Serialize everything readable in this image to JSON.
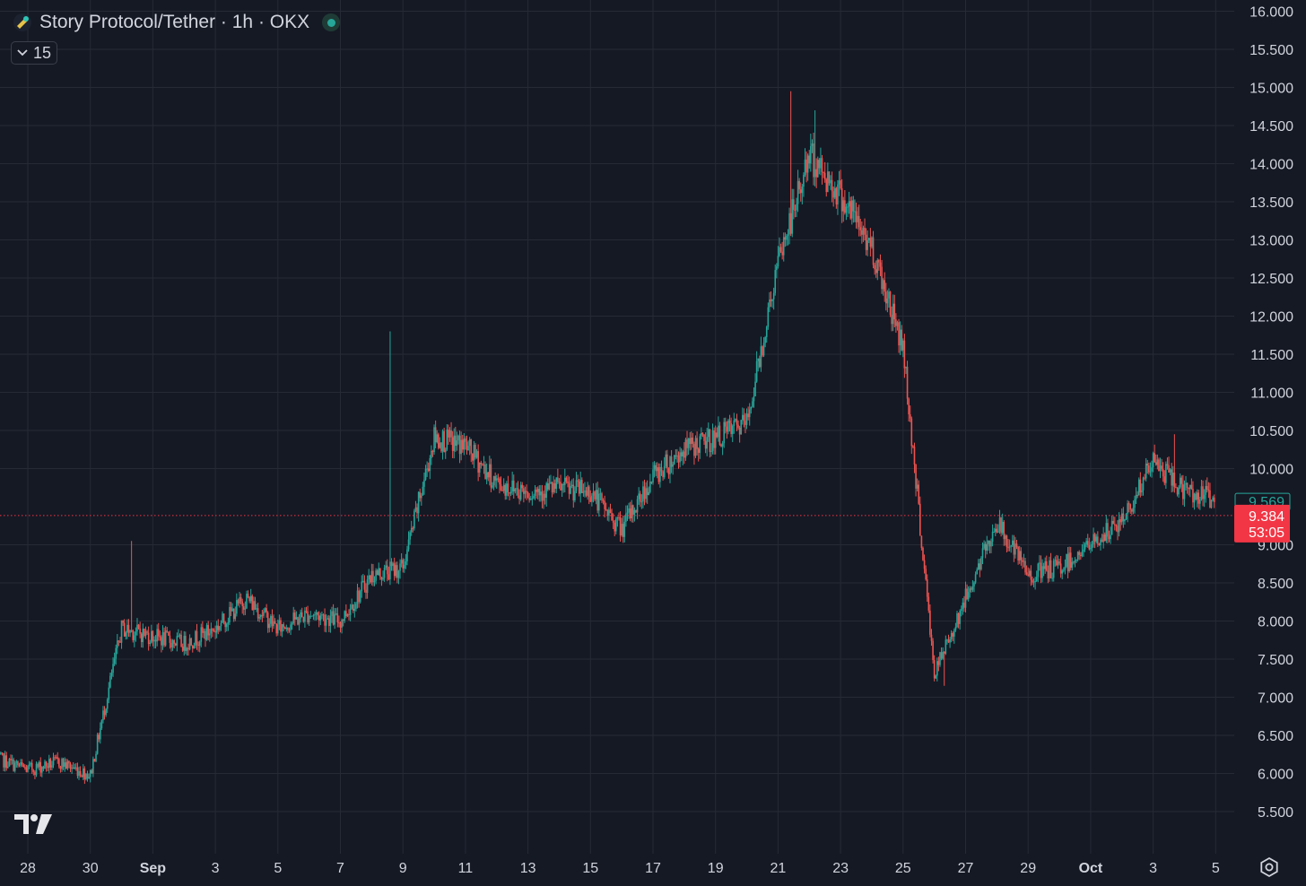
{
  "header": {
    "symbol": "Story Protocol/Tether · 1h · OKX",
    "indicator_count": "15",
    "logo_icon": "story-protocol-icon",
    "live_icon": "market-open-dot"
  },
  "colors": {
    "background": "#151924",
    "grid": "#262a35",
    "text": "#d1d4dc",
    "up": "#26a69a",
    "down": "#ef5350",
    "price_line": "#f23645"
  },
  "price_axis": {
    "labels": [
      "16.000",
      "15.500",
      "15.000",
      "14.500",
      "14.000",
      "13.500",
      "13.000",
      "12.500",
      "12.000",
      "11.500",
      "11.000",
      "10.500",
      "10.000",
      "9.000",
      "8.500",
      "8.000",
      "7.500",
      "7.000",
      "6.500",
      "6.000",
      "5.500"
    ]
  },
  "badges": {
    "green_value": "9.569",
    "last_price": "9.384",
    "countdown": "53:05"
  },
  "time_axis": {
    "labels": [
      "28",
      "30",
      "Sep",
      "3",
      "5",
      "7",
      "9",
      "11",
      "13",
      "15",
      "17",
      "19",
      "21",
      "23",
      "25",
      "27",
      "29",
      "Oct",
      "3",
      "5"
    ],
    "bold_labels": [
      "Sep",
      "Oct"
    ]
  },
  "chart_data": {
    "type": "line",
    "title": "Story Protocol/Tether · 1h · OKX",
    "xlabel": "",
    "ylabel": "",
    "ylim": [
      5.5,
      16.0
    ],
    "x_range": [
      "2024-08-27",
      "2024-10-05"
    ],
    "grid": true,
    "last_price": 9.384,
    "series": [
      {
        "x": [
          "Aug 27",
          "Aug 28",
          "Aug 29",
          "Aug 30",
          "Aug 31",
          "Sep 1",
          "Sep 2",
          "Sep 3",
          "Sep 4",
          "Sep 5",
          "Sep 6",
          "Sep 7",
          "Sep 8",
          "Sep 9",
          "Sep 10",
          "Sep 11",
          "Sep 12",
          "Sep 13",
          "Sep 14",
          "Sep 15",
          "Sep 16",
          "Sep 17",
          "Sep 18",
          "Sep 19",
          "Sep 20",
          "Sep 21",
          "Sep 22",
          "Sep 23",
          "Sep 24",
          "Sep 25",
          "Sep 26",
          "Sep 27",
          "Sep 28",
          "Sep 29",
          "Sep 30",
          "Oct 1",
          "Oct 2",
          "Oct 3",
          "Oct 4",
          "Oct 5"
        ],
        "values": [
          6.2,
          6.05,
          6.15,
          5.98,
          7.9,
          7.8,
          7.7,
          7.9,
          8.3,
          7.9,
          8.1,
          8.0,
          8.6,
          8.7,
          10.4,
          10.3,
          9.8,
          9.7,
          9.75,
          9.7,
          9.2,
          9.9,
          10.25,
          10.4,
          10.6,
          12.7,
          14.1,
          13.6,
          12.9,
          11.6,
          7.3,
          8.3,
          9.3,
          8.6,
          8.7,
          9.0,
          9.3,
          10.1,
          9.7,
          9.6
        ]
      }
    ]
  }
}
